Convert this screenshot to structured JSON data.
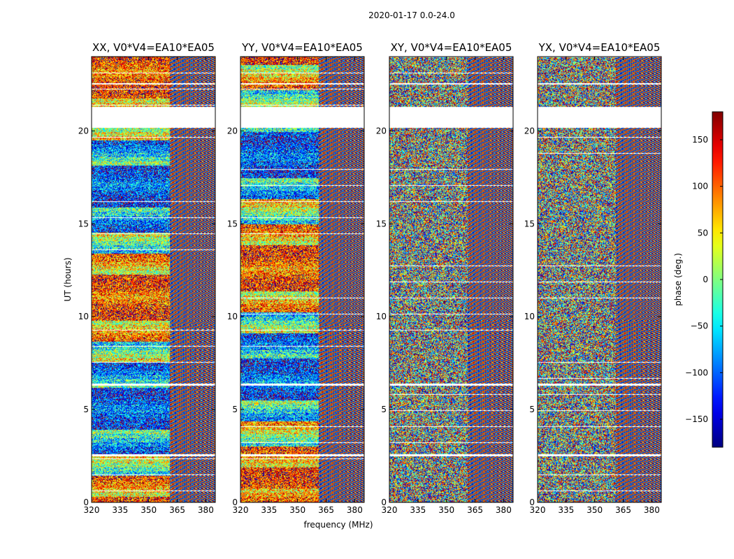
{
  "figure": {
    "suptitle": "2020-01-17 0.0-24.0"
  },
  "chart_data": {
    "type": "heatmap",
    "xlabel": "frequency (MHz)",
    "ylabel": "UT (hours)",
    "xlim": [
      320,
      385
    ],
    "ylim": [
      0,
      24
    ],
    "xticks": [
      320,
      335,
      350,
      365,
      380
    ],
    "yticks": [
      0,
      5,
      10,
      15,
      20
    ],
    "panels": [
      {
        "title": "XX, V0*V4=EA10*EA05"
      },
      {
        "title": "YY, V0*V4=EA10*EA05"
      },
      {
        "title": "XY, V0*V4=EA10*EA05"
      },
      {
        "title": "YX, V0*V4=EA10*EA05"
      }
    ],
    "colorbar": {
      "label": "phase (deg.)",
      "range": [
        -180,
        180
      ],
      "ticks": [
        150,
        100,
        50,
        0,
        -50,
        -100,
        -150
      ],
      "colormap": "jet"
    },
    "blank_time_ranges_hours": [
      [
        20.2,
        21.3
      ],
      [
        22.5,
        22.6
      ],
      [
        6.3,
        6.4
      ],
      [
        2.5,
        2.6
      ]
    ]
  }
}
